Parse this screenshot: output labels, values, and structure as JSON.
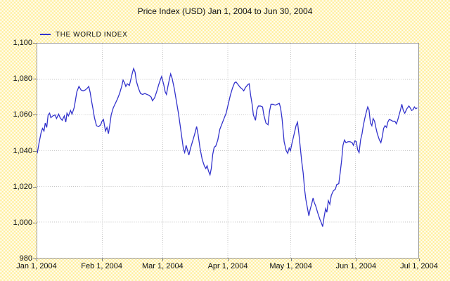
{
  "title": "Price Index (USD) Jan 1, 2004 to Jun 30, 2004",
  "legend": {
    "label": "THE WORLD INDEX"
  },
  "colors": {
    "line": "#3333cc",
    "grid": "#c6c6c6",
    "frame": "#9a9a9a",
    "plot_background": "#ffffff",
    "page_background_accent": "#ffec8f"
  },
  "chart_data": {
    "type": "line",
    "title": "Price Index (USD) Jan 1, 2004 to Jun 30, 2004",
    "grid": true,
    "legend_position": "top-left",
    "x_axis": {
      "unit": "days since Jan 1, 2004",
      "range": [
        0,
        182
      ],
      "ticks": [
        {
          "day": 0,
          "label": "Jan 1, 2004"
        },
        {
          "day": 31,
          "label": "Feb 1, 2004"
        },
        {
          "day": 60,
          "label": "Mar 1, 2004"
        },
        {
          "day": 91,
          "label": "Apr 1, 2004"
        },
        {
          "day": 121,
          "label": "May 1, 2004"
        },
        {
          "day": 152,
          "label": "Jun 1, 2004"
        },
        {
          "day": 182,
          "label": "Jul 1, 2004"
        }
      ]
    },
    "y_axis": {
      "range": [
        980,
        1100
      ],
      "tick_interval": 20,
      "ticks": [
        {
          "value": 1100,
          "label": "1,100"
        },
        {
          "value": 1080,
          "label": "1,080"
        },
        {
          "value": 1060,
          "label": "1,060"
        },
        {
          "value": 1040,
          "label": "1,040"
        },
        {
          "value": 1020,
          "label": "1,020"
        },
        {
          "value": 1000,
          "label": "1,000"
        },
        {
          "value": 980,
          "label": "980"
        }
      ]
    },
    "series": [
      {
        "name": "THE WORLD INDEX",
        "color": "#3333cc",
        "points": [
          [
            0,
            1038.5
          ],
          [
            0.8,
            1044
          ],
          [
            1.8,
            1050
          ],
          [
            2.5,
            1052.5
          ],
          [
            3.2,
            1051
          ],
          [
            3.8,
            1055.5
          ],
          [
            4.5,
            1053
          ],
          [
            5.2,
            1060
          ],
          [
            5.9,
            1061
          ],
          [
            6.5,
            1058.5
          ],
          [
            7.5,
            1059.5
          ],
          [
            8.5,
            1060
          ],
          [
            9.2,
            1058
          ],
          [
            10.2,
            1060.5
          ],
          [
            10.9,
            1058.5
          ],
          [
            11.9,
            1057
          ],
          [
            12.9,
            1059.5
          ],
          [
            13.6,
            1056
          ],
          [
            14.2,
            1061
          ],
          [
            14.9,
            1059.5
          ],
          [
            15.9,
            1062.5
          ],
          [
            16.6,
            1060.5
          ],
          [
            17.6,
            1064
          ],
          [
            18.2,
            1068
          ],
          [
            18.9,
            1073
          ],
          [
            19.9,
            1076
          ],
          [
            20.9,
            1074
          ],
          [
            21.9,
            1073.5
          ],
          [
            22.9,
            1074
          ],
          [
            23.9,
            1075
          ],
          [
            24.6,
            1076
          ],
          [
            25.3,
            1072.5
          ],
          [
            25.9,
            1068
          ],
          [
            26.6,
            1063.5
          ],
          [
            27.3,
            1058.5
          ],
          [
            28.3,
            1054
          ],
          [
            29.3,
            1053.5
          ],
          [
            30.3,
            1054.5
          ],
          [
            30.9,
            1056.5
          ],
          [
            31.6,
            1057.5
          ],
          [
            32.6,
            1051
          ],
          [
            33.3,
            1053
          ],
          [
            34,
            1049.5
          ],
          [
            34.6,
            1054
          ],
          [
            35.3,
            1060
          ],
          [
            36.3,
            1064
          ],
          [
            37.3,
            1066.5
          ],
          [
            38.3,
            1069
          ],
          [
            39.3,
            1072
          ],
          [
            40.3,
            1076
          ],
          [
            41,
            1079.5
          ],
          [
            41.7,
            1078
          ],
          [
            42.3,
            1076
          ],
          [
            43,
            1077.5
          ],
          [
            44,
            1076.5
          ],
          [
            44.7,
            1080
          ],
          [
            45.3,
            1083
          ],
          [
            46,
            1086
          ],
          [
            46.7,
            1084
          ],
          [
            47.3,
            1079
          ],
          [
            48.3,
            1075
          ],
          [
            49.3,
            1072
          ],
          [
            50.3,
            1071.5
          ],
          [
            51.4,
            1072
          ],
          [
            52.4,
            1071.5
          ],
          [
            53.4,
            1071
          ],
          [
            54.4,
            1070
          ],
          [
            55,
            1068
          ],
          [
            56,
            1069.5
          ],
          [
            57,
            1073
          ],
          [
            58,
            1077
          ],
          [
            58.7,
            1079.5
          ],
          [
            59.4,
            1081.5
          ],
          [
            60.4,
            1077
          ],
          [
            61.1,
            1073
          ],
          [
            61.7,
            1071.5
          ],
          [
            62.4,
            1076
          ],
          [
            63.1,
            1080
          ],
          [
            63.7,
            1083
          ],
          [
            64.4,
            1080.5
          ],
          [
            65.4,
            1075
          ],
          [
            66.4,
            1068
          ],
          [
            67.4,
            1061
          ],
          [
            68.4,
            1053
          ],
          [
            69.1,
            1047
          ],
          [
            69.8,
            1041
          ],
          [
            70.4,
            1039
          ],
          [
            71.1,
            1043
          ],
          [
            71.8,
            1040
          ],
          [
            72.4,
            1037.5
          ],
          [
            73.1,
            1041
          ],
          [
            74.1,
            1045
          ],
          [
            75.1,
            1049
          ],
          [
            76.1,
            1053.5
          ],
          [
            76.8,
            1049
          ],
          [
            77.8,
            1041
          ],
          [
            78.8,
            1035
          ],
          [
            79.8,
            1031.5
          ],
          [
            80.5,
            1030
          ],
          [
            81.1,
            1031.5
          ],
          [
            81.8,
            1028.5
          ],
          [
            82.5,
            1026.5
          ],
          [
            83.1,
            1030
          ],
          [
            83.8,
            1038
          ],
          [
            84.5,
            1042
          ],
          [
            85.2,
            1042.5
          ],
          [
            86.2,
            1046
          ],
          [
            87.2,
            1052
          ],
          [
            88.2,
            1055
          ],
          [
            89.2,
            1058
          ],
          [
            90.2,
            1061
          ],
          [
            91.2,
            1066
          ],
          [
            92.2,
            1071
          ],
          [
            93.2,
            1075
          ],
          [
            94.2,
            1078
          ],
          [
            94.9,
            1078.5
          ],
          [
            95.9,
            1077
          ],
          [
            96.9,
            1075.5
          ],
          [
            97.9,
            1074.5
          ],
          [
            98.6,
            1073.5
          ],
          [
            99.5,
            1075.5
          ],
          [
            100.6,
            1077
          ],
          [
            101.2,
            1077.5
          ],
          [
            101.9,
            1071
          ],
          [
            102.6,
            1066
          ],
          [
            103.2,
            1060
          ],
          [
            104.2,
            1057
          ],
          [
            104.9,
            1063
          ],
          [
            105.6,
            1065
          ],
          [
            106.6,
            1065
          ],
          [
            107.6,
            1064.5
          ],
          [
            108.2,
            1060
          ],
          [
            109.2,
            1055.5
          ],
          [
            110.2,
            1054.5
          ],
          [
            110.9,
            1062
          ],
          [
            111.6,
            1066
          ],
          [
            112.6,
            1066
          ],
          [
            113.6,
            1065.5
          ],
          [
            114.6,
            1066
          ],
          [
            115.6,
            1066.5
          ],
          [
            116.2,
            1064
          ],
          [
            116.9,
            1058
          ],
          [
            117.9,
            1045
          ],
          [
            118.9,
            1040
          ],
          [
            119.6,
            1038.5
          ],
          [
            120.3,
            1041.5
          ],
          [
            120.9,
            1040
          ],
          [
            121.6,
            1044
          ],
          [
            122.6,
            1049
          ],
          [
            123.6,
            1054
          ],
          [
            124.3,
            1056
          ],
          [
            125,
            1049
          ],
          [
            125.6,
            1042
          ],
          [
            126.3,
            1034
          ],
          [
            127,
            1027.5
          ],
          [
            127.7,
            1018
          ],
          [
            128.3,
            1012.5
          ],
          [
            129,
            1008
          ],
          [
            129.7,
            1003.5
          ],
          [
            130.3,
            1007
          ],
          [
            131,
            1010
          ],
          [
            131.7,
            1013.5
          ],
          [
            132.3,
            1011
          ],
          [
            133,
            1009
          ],
          [
            134,
            1005
          ],
          [
            135,
            1001.5
          ],
          [
            135.7,
            999.5
          ],
          [
            136.3,
            997.5
          ],
          [
            137,
            1003
          ],
          [
            137.7,
            1007.5
          ],
          [
            138.3,
            1005.5
          ],
          [
            139,
            1012
          ],
          [
            139.7,
            1010
          ],
          [
            140.4,
            1015
          ],
          [
            141.4,
            1017.5
          ],
          [
            142.4,
            1018.5
          ],
          [
            143,
            1021
          ],
          [
            144,
            1021.5
          ],
          [
            144.7,
            1028
          ],
          [
            145.4,
            1035
          ],
          [
            146,
            1043
          ],
          [
            146.7,
            1046
          ],
          [
            147.4,
            1044.5
          ],
          [
            148.4,
            1045
          ],
          [
            149.4,
            1045
          ],
          [
            150.4,
            1044.5
          ],
          [
            151,
            1043
          ],
          [
            151.7,
            1045.5
          ],
          [
            152.4,
            1045
          ],
          [
            153,
            1040.5
          ],
          [
            153.7,
            1039
          ],
          [
            154.4,
            1046
          ],
          [
            155.1,
            1049.5
          ],
          [
            155.7,
            1054
          ],
          [
            156.4,
            1058
          ],
          [
            157.1,
            1061.5
          ],
          [
            157.8,
            1064.5
          ],
          [
            158.4,
            1063
          ],
          [
            159.1,
            1055.5
          ],
          [
            159.8,
            1054
          ],
          [
            160.4,
            1058
          ],
          [
            161.1,
            1056.5
          ],
          [
            161.8,
            1052.5
          ],
          [
            162.4,
            1049.5
          ],
          [
            163.4,
            1046
          ],
          [
            164.1,
            1044.5
          ],
          [
            164.8,
            1048
          ],
          [
            165.4,
            1052.5
          ],
          [
            166.1,
            1054
          ],
          [
            166.8,
            1053
          ],
          [
            167.4,
            1056
          ],
          [
            168.1,
            1057.5
          ],
          [
            169.1,
            1057
          ],
          [
            169.8,
            1056.5
          ],
          [
            170.8,
            1056.5
          ],
          [
            171.5,
            1055
          ],
          [
            172.1,
            1057
          ],
          [
            172.8,
            1060
          ],
          [
            173.5,
            1063
          ],
          [
            174.1,
            1066
          ],
          [
            174.8,
            1062.5
          ],
          [
            175.5,
            1061
          ],
          [
            176.5,
            1063.5
          ],
          [
            177.5,
            1065
          ],
          [
            178.1,
            1064
          ],
          [
            178.8,
            1062.5
          ],
          [
            179.5,
            1063
          ],
          [
            180.1,
            1064.5
          ],
          [
            180.8,
            1063.5
          ],
          [
            181.5,
            1064
          ]
        ]
      }
    ]
  }
}
